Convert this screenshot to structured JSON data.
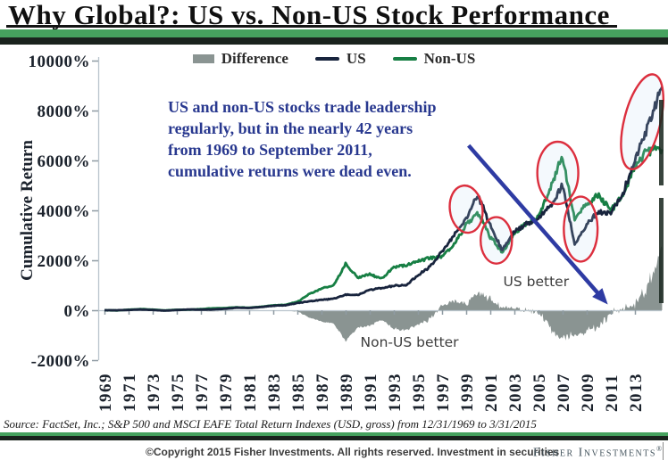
{
  "header": {
    "title": "Why Global?: US vs. Non-US Stock Performance"
  },
  "annotations": {
    "note_lines": [
      "US and non-US stocks trade leadership",
      "regularly, but in the nearly 42 years",
      "from 1969 to September 2011,",
      "cumulative returns were dead even."
    ]
  },
  "footer": {
    "source": "Source: FactSet, Inc.; S&P 500 and MSCI EAFE Total Return Indexes (USD, gross) from 12/31/1969 to 3/31/2015",
    "copyright": "©Copyright 2015 Fisher Investments. All rights reserved. Investment in securities",
    "brand": "Fisher Investments",
    "registered": "®"
  },
  "colors": {
    "band_green": "#46a25e",
    "band_dark": "#1a231d",
    "us_line": "#18243d",
    "non_us_line": "#177f44",
    "difference_area": "#8a9492",
    "note_blue": "#28388f",
    "arrow_blue": "#2e3ba3",
    "highlight_red": "#dc2f3e",
    "axis_gray": "#b9c4cc"
  },
  "chart_data": {
    "type": "line",
    "title": "",
    "xlabel": "",
    "ylabel": "Cumulative Return",
    "ylim": [
      -2000,
      10000
    ],
    "yticks": [
      10000,
      8000,
      6000,
      4000,
      2000,
      0,
      -2000
    ],
    "ytick_suffix": "%",
    "xticks": [
      1969,
      1971,
      1973,
      1975,
      1977,
      1979,
      1981,
      1983,
      1985,
      1987,
      1989,
      1991,
      1993,
      1995,
      1997,
      1999,
      2001,
      2003,
      2005,
      2007,
      2009,
      2011,
      2013
    ],
    "x_range": [
      1969,
      2015.25
    ],
    "grid": false,
    "legend_position": "top",
    "x": [
      1969,
      1970,
      1971,
      1972,
      1973,
      1974,
      1975,
      1976,
      1977,
      1978,
      1979,
      1980,
      1981,
      1982,
      1983,
      1984,
      1985,
      1986,
      1987,
      1988,
      1989,
      1990,
      1991,
      1992,
      1993,
      1994,
      1995,
      1996,
      1997,
      1998,
      1999,
      2000,
      2001,
      2002,
      2003,
      2004,
      2005,
      2006,
      2007,
      2008,
      2009,
      2010,
      2011,
      2012,
      2013,
      2014,
      2015.25
    ],
    "series": [
      {
        "name": "US",
        "color": "#18243d",
        "values": [
          0,
          -2,
          12,
          30,
          10,
          -18,
          8,
          32,
          22,
          30,
          58,
          100,
          92,
          130,
          180,
          198,
          290,
          355,
          420,
          460,
          625,
          605,
          820,
          890,
          985,
          1000,
          1400,
          1750,
          2350,
          3000,
          3700,
          4600,
          3400,
          2400,
          3150,
          3480,
          3650,
          4200,
          5000,
          2650,
          3400,
          3950,
          3900,
          4650,
          6050,
          7200,
          8950
        ]
      },
      {
        "name": "Non-US",
        "color": "#177f44",
        "values": [
          0,
          -8,
          20,
          48,
          25,
          -8,
          18,
          22,
          45,
          80,
          88,
          118,
          98,
          140,
          195,
          215,
          335,
          650,
          870,
          1000,
          1850,
          1300,
          1450,
          1270,
          1720,
          1800,
          1980,
          2100,
          2150,
          2620,
          3400,
          3900,
          2950,
          2300,
          3100,
          3450,
          3750,
          4900,
          6200,
          3600,
          4300,
          4600,
          4000,
          4550,
          5800,
          6400,
          6450
        ]
      }
    ],
    "difference_series": {
      "name": "Difference",
      "color": "#8a9492",
      "definition": "US minus Non-US cumulative return, shaded area around 0%"
    },
    "legend_items": [
      {
        "label": "Difference",
        "swatch": "area",
        "color": "#8a9492"
      },
      {
        "label": "US",
        "swatch": "line",
        "color": "#18243d"
      },
      {
        "label": "Non-US",
        "swatch": "line",
        "color": "#177f44"
      }
    ],
    "region_labels": [
      {
        "text": "US better",
        "year": 2004.8,
        "value": 1150
      },
      {
        "text": "Non-US better",
        "year": 1994.3,
        "value": -1290
      }
    ],
    "arrow": {
      "from": {
        "year": 1999.2,
        "value": 6600
      },
      "to": {
        "year": 2010.75,
        "value": 230
      },
      "color": "#2e3ba3"
    },
    "highlights": [
      {
        "year": 1999.0,
        "value": 4050,
        "rx_years": 1.35,
        "ry_value": 950,
        "rotate": -8
      },
      {
        "year": 2001.5,
        "value": 2800,
        "rx_years": 1.3,
        "ry_value": 930,
        "rotate": 0
      },
      {
        "year": 2006.6,
        "value": 5500,
        "rx_years": 1.7,
        "ry_value": 1250,
        "rotate": 0
      },
      {
        "year": 2008.5,
        "value": 3250,
        "rx_years": 1.4,
        "ry_value": 1300,
        "rotate": 0
      },
      {
        "year": 2013.6,
        "value": 7550,
        "rx_years": 1.5,
        "ry_value": 1950,
        "rotate": 14
      }
    ]
  }
}
